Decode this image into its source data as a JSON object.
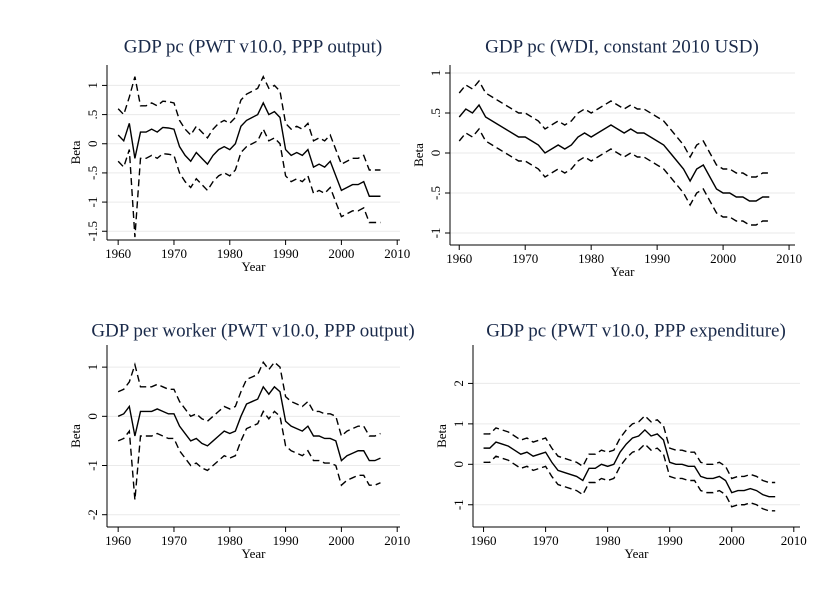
{
  "chart_data": [
    {
      "type": "line",
      "title": "GDP pc (PWT v10.0, PPP output)",
      "xlabel": "Year",
      "ylabel": "Beta",
      "x": [
        1960,
        1961,
        1962,
        1963,
        1964,
        1965,
        1966,
        1967,
        1968,
        1969,
        1970,
        1971,
        1972,
        1973,
        1974,
        1975,
        1976,
        1977,
        1978,
        1979,
        1980,
        1981,
        1982,
        1983,
        1984,
        1985,
        1986,
        1987,
        1988,
        1989,
        1990,
        1991,
        1992,
        1993,
        1994,
        1995,
        1996,
        1997,
        1998,
        1999,
        2000,
        2001,
        2002,
        2003,
        2004,
        2005,
        2006,
        2007
      ],
      "xlim": [
        1958,
        2010.5
      ],
      "xticks": [
        1960,
        1970,
        1980,
        1990,
        2000,
        2010
      ],
      "ylim": [
        -1.65,
        1.35
      ],
      "yticks": [
        {
          "value": -1.5,
          "label": "-1.5"
        },
        -1,
        {
          "value": -0.5,
          "label": "-.5"
        },
        0,
        {
          "value": 0.5,
          "label": ".5"
        },
        1
      ],
      "grid": true,
      "series": [
        {
          "color": "#000000",
          "style": "solid",
          "values": [
            0.15,
            0.05,
            0.35,
            -0.25,
            0.2,
            0.2,
            0.25,
            0.2,
            0.28,
            0.27,
            0.25,
            -0.05,
            -0.2,
            -0.3,
            -0.15,
            -0.25,
            -0.35,
            -0.2,
            -0.1,
            -0.05,
            -0.1,
            0,
            0.3,
            0.4,
            0.45,
            0.5,
            0.7,
            0.5,
            0.55,
            0.45,
            -0.1,
            -0.2,
            -0.15,
            -0.2,
            -0.1,
            -0.4,
            -0.35,
            -0.4,
            -0.3,
            -0.55,
            -0.8,
            -0.75,
            -0.7,
            -0.7,
            -0.65,
            -0.9,
            -0.9,
            -0.9
          ]
        },
        {
          "color": "#000000",
          "style": "dashed",
          "values": [
            0.6,
            0.5,
            0.8,
            1.15,
            0.65,
            0.65,
            0.7,
            0.65,
            0.73,
            0.72,
            0.7,
            0.4,
            0.25,
            0.15,
            0.3,
            0.2,
            0.1,
            0.25,
            0.35,
            0.4,
            0.35,
            0.45,
            0.75,
            0.85,
            0.9,
            0.95,
            1.15,
            0.95,
            1.0,
            0.9,
            0.35,
            0.25,
            0.3,
            0.25,
            0.35,
            0.05,
            0.1,
            0.05,
            0.15,
            -0.1,
            -0.35,
            -0.3,
            -0.25,
            -0.25,
            -0.2,
            -0.45,
            -0.45,
            -0.45
          ]
        },
        {
          "color": "#000000",
          "style": "dashed",
          "values": [
            -0.3,
            -0.4,
            -0.1,
            -1.6,
            -0.25,
            -0.25,
            -0.2,
            -0.25,
            -0.17,
            -0.18,
            -0.2,
            -0.5,
            -0.65,
            -0.75,
            -0.6,
            -0.7,
            -0.8,
            -0.65,
            -0.55,
            -0.5,
            -0.55,
            -0.45,
            -0.15,
            -0.05,
            0,
            0.05,
            0.25,
            0.05,
            0.1,
            0,
            -0.55,
            -0.65,
            -0.6,
            -0.65,
            -0.55,
            -0.85,
            -0.8,
            -0.85,
            -0.75,
            -1.0,
            -1.25,
            -1.2,
            -1.15,
            -1.15,
            -1.1,
            -1.35,
            -1.35,
            -1.35
          ]
        }
      ]
    },
    {
      "type": "line",
      "title": "GDP pc (WDI, constant 2010 USD)",
      "xlabel": "Year",
      "ylabel": "Beta",
      "x": [
        1960,
        1961,
        1962,
        1963,
        1964,
        1965,
        1966,
        1967,
        1968,
        1969,
        1970,
        1971,
        1972,
        1973,
        1974,
        1975,
        1976,
        1977,
        1978,
        1979,
        1980,
        1981,
        1982,
        1983,
        1984,
        1985,
        1986,
        1987,
        1988,
        1989,
        1990,
        1991,
        1992,
        1993,
        1994,
        1995,
        1996,
        1997,
        1998,
        1999,
        2000,
        2001,
        2002,
        2003,
        2004,
        2005,
        2006,
        2007
      ],
      "xlim": [
        1958.6,
        2010.9
      ],
      "xticks": [
        1960,
        1970,
        1980,
        1990,
        2000,
        2010
      ],
      "ylim": [
        -1.15,
        1.1
      ],
      "yticks": [
        -1,
        {
          "value": -0.5,
          "label": "-.5"
        },
        0,
        {
          "value": 0.5,
          "label": ".5"
        },
        1
      ],
      "grid": true,
      "series": [
        {
          "color": "#000000",
          "style": "solid",
          "values": [
            0.45,
            0.55,
            0.5,
            0.6,
            0.45,
            0.4,
            0.35,
            0.3,
            0.25,
            0.2,
            0.2,
            0.15,
            0.1,
            0,
            0.05,
            0.1,
            0.05,
            0.1,
            0.2,
            0.25,
            0.2,
            0.25,
            0.3,
            0.35,
            0.3,
            0.25,
            0.3,
            0.25,
            0.25,
            0.2,
            0.15,
            0.1,
            0,
            -0.1,
            -0.2,
            -0.35,
            -0.2,
            -0.15,
            -0.3,
            -0.45,
            -0.5,
            -0.5,
            -0.55,
            -0.55,
            -0.6,
            -0.6,
            -0.55,
            -0.55
          ]
        },
        {
          "color": "#000000",
          "style": "dashed",
          "values": [
            0.75,
            0.85,
            0.8,
            0.9,
            0.75,
            0.7,
            0.65,
            0.6,
            0.55,
            0.5,
            0.5,
            0.45,
            0.4,
            0.3,
            0.35,
            0.4,
            0.35,
            0.4,
            0.5,
            0.55,
            0.5,
            0.55,
            0.6,
            0.65,
            0.6,
            0.55,
            0.6,
            0.55,
            0.55,
            0.5,
            0.45,
            0.4,
            0.3,
            0.2,
            0.1,
            -0.05,
            0.1,
            0.15,
            0,
            -0.15,
            -0.2,
            -0.2,
            -0.25,
            -0.25,
            -0.3,
            -0.3,
            -0.25,
            -0.25
          ]
        },
        {
          "color": "#000000",
          "style": "dashed",
          "values": [
            0.15,
            0.25,
            0.2,
            0.3,
            0.15,
            0.1,
            0.05,
            0,
            -0.05,
            -0.1,
            -0.1,
            -0.15,
            -0.2,
            -0.3,
            -0.25,
            -0.2,
            -0.25,
            -0.2,
            -0.1,
            -0.05,
            -0.1,
            -0.05,
            0,
            0.05,
            0,
            -0.05,
            0,
            -0.05,
            -0.05,
            -0.1,
            -0.15,
            -0.2,
            -0.3,
            -0.4,
            -0.5,
            -0.65,
            -0.5,
            -0.45,
            -0.6,
            -0.75,
            -0.8,
            -0.8,
            -0.85,
            -0.85,
            -0.9,
            -0.9,
            -0.85,
            -0.85
          ]
        }
      ]
    },
    {
      "type": "line",
      "title": "GDP per worker (PWT v10.0, PPP output)",
      "xlabel": "Year",
      "ylabel": "Beta",
      "x": [
        1960,
        1961,
        1962,
        1963,
        1964,
        1965,
        1966,
        1967,
        1968,
        1969,
        1970,
        1971,
        1972,
        1973,
        1974,
        1975,
        1976,
        1977,
        1978,
        1979,
        1980,
        1981,
        1982,
        1983,
        1984,
        1985,
        1986,
        1987,
        1988,
        1989,
        1990,
        1991,
        1992,
        1993,
        1994,
        1995,
        1996,
        1997,
        1998,
        1999,
        2000,
        2001,
        2002,
        2003,
        2004,
        2005,
        2006,
        2007
      ],
      "xlim": [
        1958,
        2010.5
      ],
      "xticks": [
        1960,
        1970,
        1980,
        1990,
        2000,
        2010
      ],
      "ylim": [
        -2.25,
        1.45
      ],
      "yticks": [
        -2,
        -1,
        0,
        1
      ],
      "grid": true,
      "series": [
        {
          "color": "#000000",
          "style": "solid",
          "values": [
            0,
            0.05,
            0.2,
            -0.4,
            0.1,
            0.1,
            0.1,
            0.15,
            0.1,
            0.05,
            0.05,
            -0.2,
            -0.35,
            -0.5,
            -0.45,
            -0.55,
            -0.6,
            -0.5,
            -0.4,
            -0.3,
            -0.35,
            -0.3,
            0,
            0.25,
            0.3,
            0.35,
            0.6,
            0.45,
            0.6,
            0.5,
            -0.1,
            -0.2,
            -0.25,
            -0.3,
            -0.2,
            -0.4,
            -0.4,
            -0.45,
            -0.45,
            -0.5,
            -0.9,
            -0.8,
            -0.75,
            -0.7,
            -0.7,
            -0.9,
            -0.9,
            -0.85
          ]
        },
        {
          "color": "#000000",
          "style": "dashed",
          "values": [
            0.5,
            0.55,
            0.7,
            1.05,
            0.6,
            0.6,
            0.6,
            0.65,
            0.6,
            0.55,
            0.55,
            0.3,
            0.15,
            0,
            0.05,
            -0.05,
            -0.1,
            0,
            0.1,
            0.2,
            0.15,
            0.2,
            0.5,
            0.75,
            0.8,
            0.85,
            1.1,
            0.95,
            1.1,
            1.0,
            0.4,
            0.3,
            0.25,
            0.2,
            0.3,
            0.1,
            0.1,
            0.05,
            0.05,
            0,
            -0.4,
            -0.3,
            -0.25,
            -0.2,
            -0.2,
            -0.4,
            -0.4,
            -0.35
          ]
        },
        {
          "color": "#000000",
          "style": "dashed",
          "values": [
            -0.5,
            -0.45,
            -0.3,
            -1.7,
            -0.4,
            -0.4,
            -0.4,
            -0.35,
            -0.4,
            -0.45,
            -0.45,
            -0.7,
            -0.85,
            -1.0,
            -0.95,
            -1.05,
            -1.1,
            -1.0,
            -0.9,
            -0.8,
            -0.85,
            -0.8,
            -0.5,
            -0.25,
            -0.2,
            -0.15,
            0.1,
            -0.05,
            0.1,
            0,
            -0.6,
            -0.7,
            -0.75,
            -0.8,
            -0.7,
            -0.9,
            -0.9,
            -0.95,
            -0.95,
            -1.0,
            -1.4,
            -1.3,
            -1.25,
            -1.2,
            -1.2,
            -1.4,
            -1.4,
            -1.35
          ]
        }
      ]
    },
    {
      "type": "line",
      "title": "GDP pc (PWT v10.0, PPP expenditure)",
      "xlabel": "Year",
      "ylabel": "Beta",
      "x": [
        1960,
        1961,
        1962,
        1963,
        1964,
        1965,
        1966,
        1967,
        1968,
        1969,
        1970,
        1971,
        1972,
        1973,
        1974,
        1975,
        1976,
        1977,
        1978,
        1979,
        1980,
        1981,
        1982,
        1983,
        1984,
        1985,
        1986,
        1987,
        1988,
        1989,
        1990,
        1991,
        1992,
        1993,
        1994,
        1995,
        1996,
        1997,
        1998,
        1999,
        2000,
        2001,
        2002,
        2003,
        2004,
        2005,
        2006,
        2007
      ],
      "xlim": [
        1958.3,
        2011
      ],
      "xticks": [
        1960,
        1970,
        1980,
        1990,
        2000,
        2010
      ],
      "ylim": [
        -1.55,
        2.95
      ],
      "yticks": [
        -1,
        0,
        1,
        2
      ],
      "grid": true,
      "series": [
        {
          "color": "#000000",
          "style": "solid",
          "values": [
            0.4,
            0.4,
            0.55,
            0.5,
            0.45,
            0.35,
            0.25,
            0.3,
            0.2,
            0.25,
            0.3,
            0.05,
            -0.15,
            -0.2,
            -0.25,
            -0.3,
            -0.4,
            -0.1,
            -0.1,
            0,
            -0.05,
            0,
            0.3,
            0.5,
            0.65,
            0.7,
            0.85,
            0.7,
            0.75,
            0.6,
            0.05,
            0,
            0,
            -0.05,
            -0.05,
            -0.3,
            -0.35,
            -0.35,
            -0.3,
            -0.4,
            -0.7,
            -0.65,
            -0.65,
            -0.6,
            -0.65,
            -0.75,
            -0.8,
            -0.8
          ]
        },
        {
          "color": "#000000",
          "style": "dashed",
          "values": [
            0.75,
            0.75,
            0.9,
            0.85,
            0.8,
            0.7,
            0.6,
            0.65,
            0.55,
            0.6,
            0.65,
            0.4,
            0.2,
            0.15,
            0.1,
            0.05,
            -0.05,
            0.25,
            0.25,
            0.35,
            0.3,
            0.35,
            0.65,
            0.85,
            1.0,
            1.05,
            1.2,
            1.05,
            1.1,
            0.95,
            0.4,
            0.35,
            0.35,
            0.3,
            0.3,
            0.05,
            0,
            0,
            0.05,
            -0.05,
            -0.35,
            -0.3,
            -0.3,
            -0.25,
            -0.3,
            -0.4,
            -0.45,
            -0.45
          ]
        },
        {
          "color": "#000000",
          "style": "dashed",
          "values": [
            0.05,
            0.05,
            0.2,
            0.15,
            0.1,
            0,
            -0.1,
            -0.05,
            -0.15,
            -0.1,
            -0.05,
            -0.3,
            -0.5,
            -0.55,
            -0.6,
            -0.65,
            -0.75,
            -0.45,
            -0.45,
            -0.35,
            -0.4,
            -0.35,
            -0.05,
            0.15,
            0.3,
            0.35,
            0.5,
            0.35,
            0.4,
            0.25,
            -0.3,
            -0.35,
            -0.35,
            -0.4,
            -0.4,
            -0.65,
            -0.7,
            -0.7,
            -0.65,
            -0.75,
            -1.05,
            -1.0,
            -1.0,
            -0.95,
            -1.0,
            -1.1,
            -1.15,
            -1.15
          ]
        }
      ]
    }
  ]
}
